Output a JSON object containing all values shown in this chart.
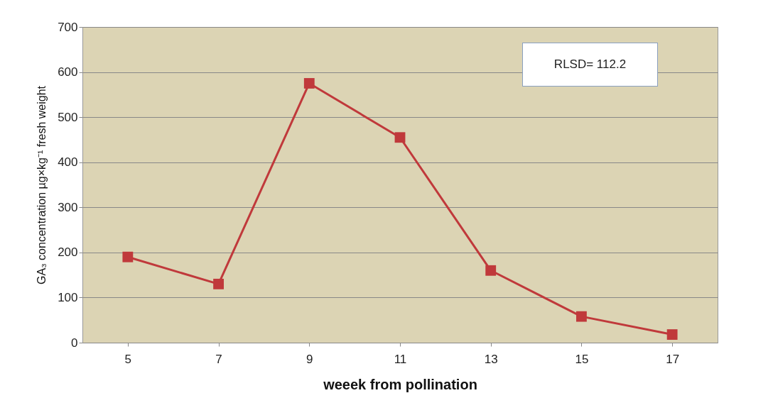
{
  "chart_data": {
    "type": "line",
    "xlabel": "weeek from pollination",
    "ylabel": "GA₃ concentration µg×kg⁻¹ fresh  weight",
    "categories": [
      "5",
      "7",
      "9",
      "11",
      "13",
      "15",
      "17"
    ],
    "series": [
      {
        "color": "#c0393b",
        "values": [
          190,
          130,
          575,
          455,
          160,
          58,
          18
        ]
      }
    ],
    "ylim": [
      0,
      700
    ],
    "yticks": [
      0,
      100,
      200,
      300,
      400,
      500,
      600,
      700
    ],
    "grid": "y",
    "marker": "square",
    "legend": false,
    "annotations": [
      "RLSD= 112.2"
    ]
  }
}
